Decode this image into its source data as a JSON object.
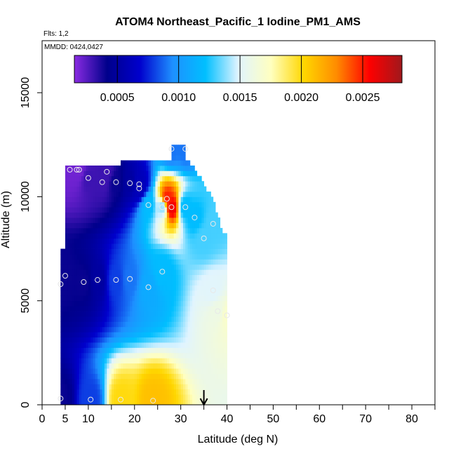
{
  "chart_data": {
    "type": "heatmap",
    "title": "ATOM4 Northeast_Pacific_1 Iodine_PM1_AMS",
    "flights_label": "Flts: 1,2",
    "dates_label": "MMDD: 0424,0427",
    "xlabel": "Latitude (deg N)",
    "ylabel": "Altitude (m)",
    "xlim": [
      0,
      85
    ],
    "ylim": [
      0,
      17500
    ],
    "x_ticks": [
      0,
      5,
      10,
      20,
      30,
      40,
      50,
      60,
      70,
      80
    ],
    "y_ticks": [
      0,
      5000,
      10000,
      15000
    ],
    "colorbar": {
      "range": [
        0.00015,
        0.00282
      ],
      "ticks": [
        "0.0005",
        "0.0010",
        "0.0015",
        "0.0020",
        "0.0025"
      ],
      "tick_values": [
        0.0005,
        0.001,
        0.0015,
        0.002,
        0.0025
      ],
      "colors": [
        "#8a2be2",
        "#00008b",
        "#0000cd",
        "#1e90ff",
        "#00bfff",
        "#e0f4ff",
        "#ffffc0",
        "#ffd700",
        "#ff8c00",
        "#ff0000",
        "#a0181c"
      ]
    },
    "marker_latitude": 35,
    "samples": [
      {
        "lat": 4,
        "alt": 300,
        "value": 0.0004
      },
      {
        "lat": 4,
        "alt": 5800,
        "value": 0.0004
      },
      {
        "lat": 5,
        "alt": 6200,
        "value": 0.0004
      },
      {
        "lat": 6,
        "alt": 11300,
        "value": 0.0002
      },
      {
        "lat": 7.5,
        "alt": 11300,
        "value": 0.0002
      },
      {
        "lat": 8,
        "alt": 11300,
        "value": 0.0002
      },
      {
        "lat": 9,
        "alt": 5900,
        "value": 0.0004
      },
      {
        "lat": 10,
        "alt": 10900,
        "value": 0.0003
      },
      {
        "lat": 10.5,
        "alt": 250,
        "value": 0.0008
      },
      {
        "lat": 12,
        "alt": 6000,
        "value": 0.0005
      },
      {
        "lat": 13,
        "alt": 10700,
        "value": 0.0003
      },
      {
        "lat": 14,
        "alt": 11200,
        "value": 0.0003
      },
      {
        "lat": 16,
        "alt": 6000,
        "value": 0.0008
      },
      {
        "lat": 16,
        "alt": 10700,
        "value": 0.0004
      },
      {
        "lat": 17,
        "alt": 250,
        "value": 0.002
      },
      {
        "lat": 19,
        "alt": 10650,
        "value": 0.0005
      },
      {
        "lat": 19,
        "alt": 6050,
        "value": 0.0009
      },
      {
        "lat": 21,
        "alt": 10600,
        "value": 0.0006
      },
      {
        "lat": 21,
        "alt": 10400,
        "value": 0.0006
      },
      {
        "lat": 23,
        "alt": 5650,
        "value": 0.0011
      },
      {
        "lat": 23,
        "alt": 9600,
        "value": 0.0012
      },
      {
        "lat": 24,
        "alt": 200,
        "value": 0.0021
      },
      {
        "lat": 26,
        "alt": 6400,
        "value": 0.0012
      },
      {
        "lat": 26,
        "alt": 9500,
        "value": 0.0014
      },
      {
        "lat": 27,
        "alt": 9900,
        "value": 0.0025
      },
      {
        "lat": 28,
        "alt": 9500,
        "value": 0.0026
      },
      {
        "lat": 28,
        "alt": 12300,
        "value": 0.0009
      },
      {
        "lat": 31,
        "alt": 12300,
        "value": 0.0009
      },
      {
        "lat": 31,
        "alt": 9500,
        "value": 0.0012
      },
      {
        "lat": 33,
        "alt": 9000,
        "value": 0.0012
      },
      {
        "lat": 35,
        "alt": 8000,
        "value": 0.0013
      },
      {
        "lat": 37,
        "alt": 8700,
        "value": 0.0013
      },
      {
        "lat": 37,
        "alt": 5500,
        "value": 0.0015
      },
      {
        "lat": 38,
        "alt": 4500,
        "value": 0.0016
      },
      {
        "lat": 40,
        "alt": 4300,
        "value": 0.0017
      }
    ]
  }
}
